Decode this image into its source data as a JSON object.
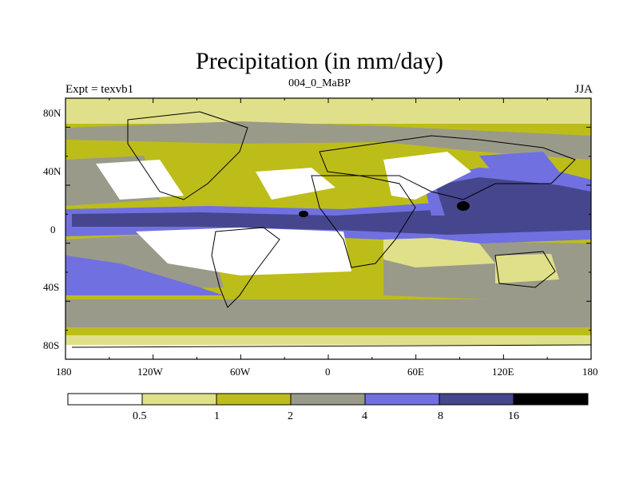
{
  "header": {
    "title": "Precipitation (in mm/day)",
    "left_label": "Expt = texvb1",
    "center_label": "004_0_MaBP",
    "right_label": "JJA"
  },
  "axes": {
    "y_ticks": [
      "80N",
      "40N",
      "0",
      "40S",
      "80S"
    ],
    "x_ticks": [
      "180",
      "120W",
      "60W",
      "0",
      "60E",
      "120E",
      "180"
    ]
  },
  "colorbar": {
    "labels": [
      "0.5",
      "1",
      "2",
      "4",
      "8",
      "16"
    ],
    "colors": [
      "#ffffff",
      "#e0e08a",
      "#bdbd1a",
      "#9a9a8a",
      "#7070e0",
      "#46468e",
      "#000000"
    ]
  },
  "palette": {
    "ocean_base": "#9a9a8a",
    "dry": "#ffffff",
    "light_yellow": "#e0e08a",
    "olive": "#bdbd1a",
    "blue": "#7070e0",
    "dark_blue": "#46468e",
    "black": "#000000"
  }
}
